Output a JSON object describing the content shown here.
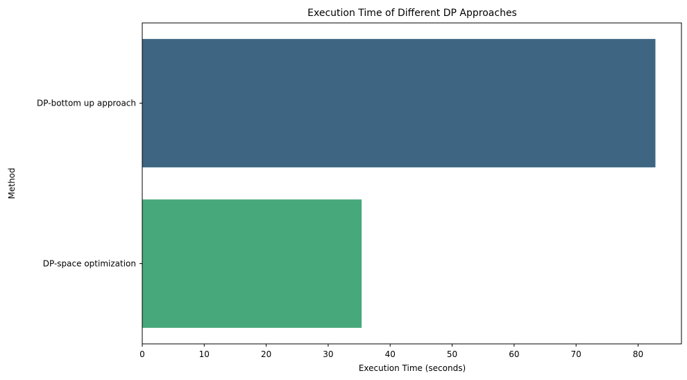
{
  "chart_data": {
    "type": "bar",
    "orientation": "horizontal",
    "title": "Execution Time of Different DP Approaches",
    "xlabel": "Execution Time (seconds)",
    "ylabel": "Method",
    "categories": [
      "DP-bottom up approach",
      "DP-space optimization"
    ],
    "values": [
      82.8,
      35.4
    ],
    "colors": [
      "#3e6682",
      "#47a87b"
    ],
    "xlim": [
      0,
      87
    ],
    "xticks": [
      "0",
      "10",
      "20",
      "30",
      "40",
      "50",
      "60",
      "70",
      "80"
    ],
    "grid": false
  }
}
